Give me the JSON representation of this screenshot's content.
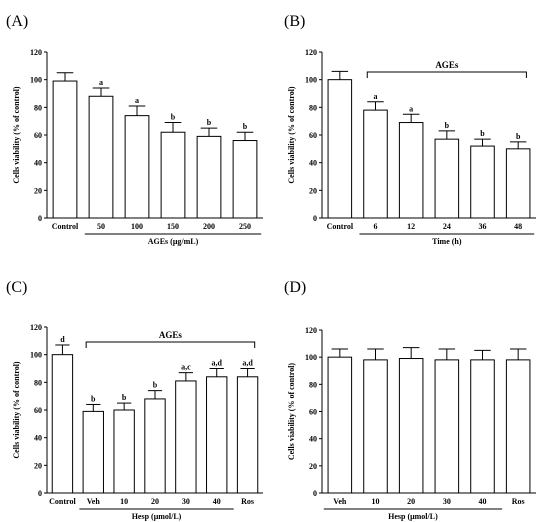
{
  "chart_data": [
    {
      "panel": "(A)",
      "type": "bar",
      "categories": [
        "Control",
        "50",
        "100",
        "150",
        "200",
        "250"
      ],
      "values": [
        99,
        88,
        74,
        62,
        59,
        56
      ],
      "errors": [
        6,
        6,
        7,
        7,
        6,
        6
      ],
      "significance": [
        "",
        "a",
        "a",
        "b",
        "b",
        "b"
      ],
      "ylabel": "Cells viability (% of control)",
      "xlabel": "AGEs (μg/mL)",
      "ylim": [
        0,
        120
      ],
      "yticks": [
        0,
        20,
        40,
        60,
        80,
        100,
        120
      ],
      "group_bracket": null
    },
    {
      "panel": "(B)",
      "type": "bar",
      "categories": [
        "Control",
        "6",
        "12",
        "24",
        "36",
        "48"
      ],
      "values": [
        100,
        78,
        69,
        57,
        52,
        50
      ],
      "errors": [
        6,
        6,
        6,
        6,
        5,
        5
      ],
      "significance": [
        "",
        "a",
        "a",
        "b",
        "b",
        "b"
      ],
      "ylabel": "Cells viability (% of control)",
      "xlabel": "Time (h)",
      "ylim": [
        0,
        120
      ],
      "yticks": [
        0,
        20,
        40,
        60,
        80,
        100,
        120
      ],
      "group_bracket": {
        "label": "AGEs",
        "from": 1,
        "to": 5
      }
    },
    {
      "panel": "(C)",
      "type": "bar",
      "categories": [
        "Control",
        "Veh",
        "10",
        "20",
        "30",
        "40",
        "Ros"
      ],
      "values": [
        100,
        59,
        60,
        68,
        81,
        84,
        84
      ],
      "errors": [
        7,
        5,
        5,
        6,
        6,
        6,
        6
      ],
      "significance": [
        "d",
        "b",
        "b",
        "b",
        "a,c",
        "a,d",
        "a,d"
      ],
      "ylabel": "Cells viability (% of control)",
      "xlabel": "Hesp (μmol/L)",
      "ylim": [
        0,
        120
      ],
      "yticks": [
        0,
        20,
        40,
        60,
        80,
        100,
        120
      ],
      "group_bracket": {
        "label": "AGEs",
        "from": 1,
        "to": 6
      }
    },
    {
      "panel": "(D)",
      "type": "bar",
      "categories": [
        "Veh",
        "10",
        "20",
        "30",
        "40",
        "Ros"
      ],
      "values": [
        100,
        98,
        99,
        98,
        98,
        98
      ],
      "errors": [
        6,
        8,
        8,
        8,
        7,
        8
      ],
      "significance": [
        "",
        "",
        "",
        "",
        "",
        ""
      ],
      "ylabel": "Cells viability (% of control)",
      "xlabel": "Hesp (μmol/L)",
      "ylim": [
        0,
        120
      ],
      "yticks": [
        0,
        20,
        40,
        60,
        80,
        100,
        120
      ],
      "group_bracket": null
    }
  ]
}
